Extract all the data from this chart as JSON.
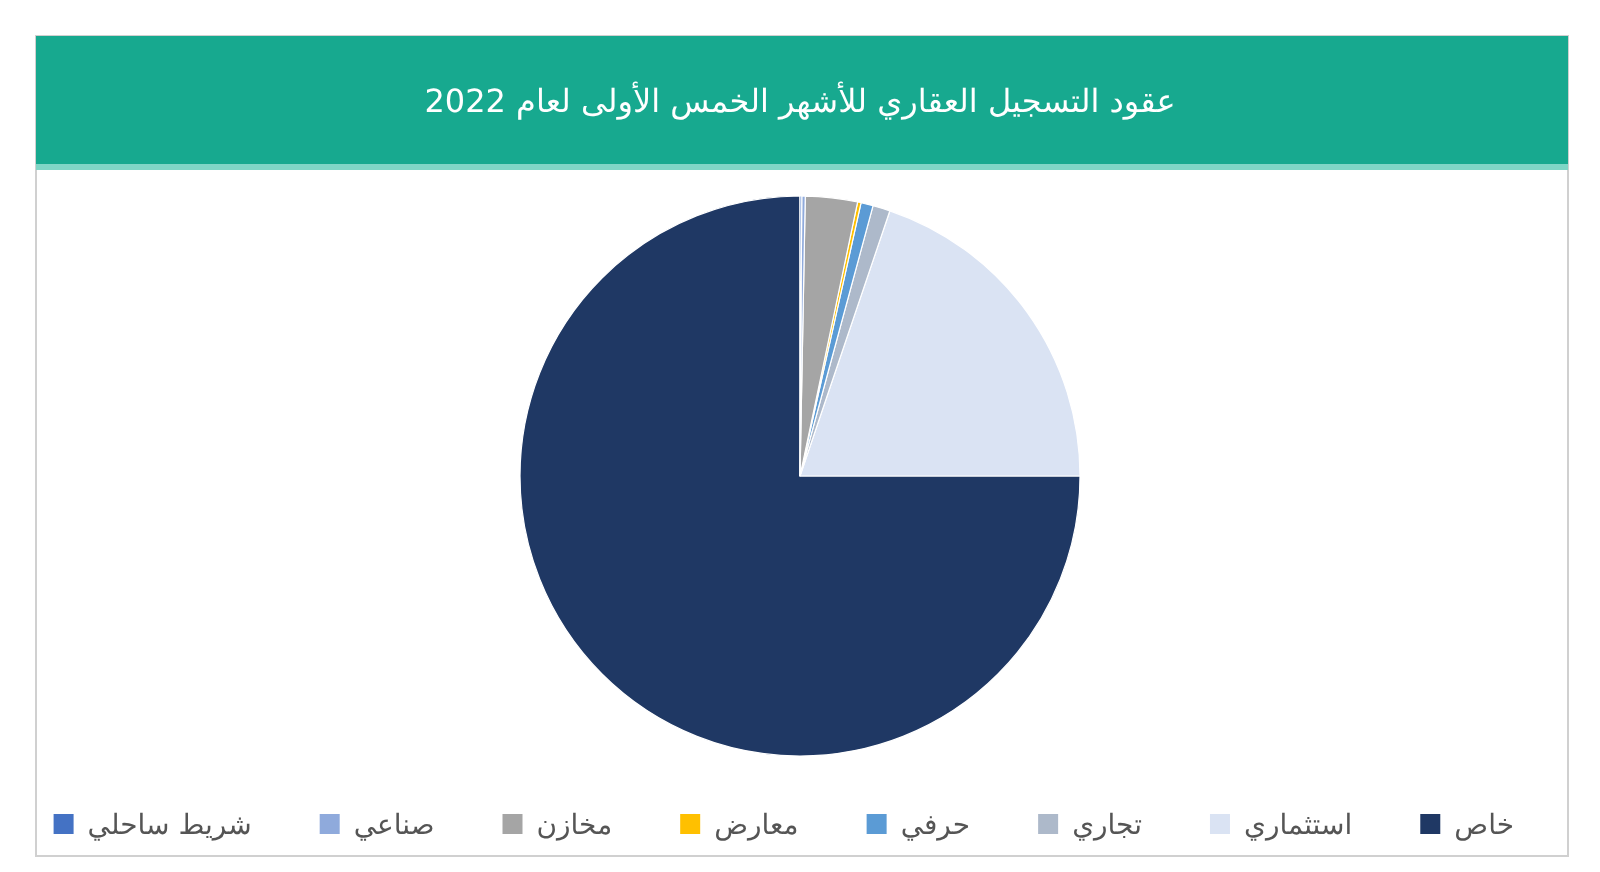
{
  "chart_data": {
    "type": "pie",
    "title": "عقود التسجيل العقاري للأشهر الخمس الأولى لعام 2022",
    "categories": [
      "خاص",
      "استثماري",
      "تجاري",
      "حرفي",
      "معارض",
      "مخازن",
      "صناعي",
      "شريط ساحلي"
    ],
    "values": [
      75,
      19.8,
      1,
      0.7,
      0.2,
      3,
      0.2,
      0.1
    ],
    "colors": [
      "#1f3864",
      "#dae3f3",
      "#adb9ca",
      "#5b9bd5",
      "#ffc000",
      "#a5a5a5",
      "#8faadc",
      "#4472c4"
    ],
    "legend": "bottom"
  }
}
